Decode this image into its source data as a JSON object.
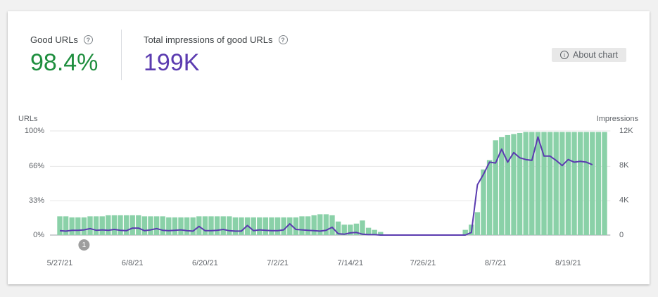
{
  "header": {
    "good_urls": {
      "label": "Good URLs",
      "value": "98.4%"
    },
    "impressions": {
      "label": "Total impressions of good URLs",
      "value": "199K"
    },
    "about_button": "About chart"
  },
  "chart_data": {
    "type": "combo",
    "y_label": "URLs",
    "y2_label": "Impressions",
    "categories": [
      "5/27/21",
      null,
      null,
      null,
      null,
      null,
      null,
      null,
      null,
      null,
      null,
      null,
      "6/8/21",
      null,
      null,
      null,
      null,
      null,
      null,
      null,
      null,
      null,
      null,
      null,
      "6/20/21",
      null,
      null,
      null,
      null,
      null,
      null,
      null,
      null,
      null,
      null,
      null,
      "7/2/21",
      null,
      null,
      null,
      null,
      null,
      null,
      null,
      null,
      null,
      null,
      null,
      "7/14/21",
      null,
      null,
      null,
      null,
      null,
      null,
      null,
      null,
      null,
      null,
      null,
      "7/26/21",
      null,
      null,
      null,
      null,
      null,
      null,
      null,
      null,
      null,
      null,
      null,
      "8/7/21",
      null,
      null,
      null,
      null,
      null,
      null,
      null,
      null,
      null,
      null,
      null,
      "8/19/21",
      null,
      null,
      null,
      null,
      null,
      null
    ],
    "series": [
      {
        "type": "bar",
        "color": "#8ad1a8",
        "values": [
          18,
          18,
          17,
          17,
          17,
          18,
          18,
          18,
          19,
          19,
          19,
          19,
          19,
          19,
          18,
          18,
          18,
          18,
          17,
          17,
          17,
          17,
          17,
          18,
          18,
          18,
          18,
          18,
          18,
          17,
          17,
          17,
          17,
          17,
          17,
          17,
          17,
          17,
          17,
          17,
          18,
          18,
          19,
          20,
          20,
          19,
          13,
          10,
          10,
          11,
          14,
          7,
          5,
          3,
          0,
          0,
          0,
          0,
          0,
          0,
          0,
          0,
          0,
          0,
          0,
          0,
          0,
          5,
          10,
          22,
          63,
          72,
          91,
          94,
          96,
          97,
          98,
          99,
          99,
          99,
          99,
          99,
          99,
          99,
          99,
          99,
          99,
          99,
          99,
          99,
          99
        ]
      },
      {
        "type": "line",
        "axis": "y2",
        "color": "#5b3bb0",
        "values": [
          500,
          450,
          550,
          550,
          600,
          750,
          550,
          600,
          550,
          650,
          550,
          500,
          800,
          800,
          500,
          600,
          750,
          550,
          500,
          550,
          600,
          500,
          450,
          1000,
          500,
          500,
          550,
          650,
          500,
          450,
          450,
          1100,
          500,
          600,
          550,
          500,
          500,
          600,
          1300,
          650,
          600,
          550,
          500,
          450,
          550,
          900,
          150,
          100,
          250,
          300,
          100,
          50,
          50,
          0,
          0,
          0,
          0,
          0,
          0,
          0,
          0,
          0,
          0,
          0,
          0,
          0,
          0,
          0,
          300,
          5800,
          7000,
          8400,
          8300,
          9900,
          8400,
          9500,
          8900,
          8700,
          8600,
          11300,
          9100,
          9100,
          8600,
          8000,
          8700,
          8400,
          8500,
          8400,
          8100,
          null,
          null
        ]
      }
    ],
    "ylim": [
      0,
      100
    ],
    "yticks": [
      {
        "value": 0,
        "label": "0%"
      },
      {
        "value": 33,
        "label": "33%"
      },
      {
        "value": 66,
        "label": "66%"
      },
      {
        "value": 100,
        "label": "100%"
      }
    ],
    "y2lim": [
      0,
      12000
    ],
    "y2ticks": [
      0,
      {
        "value": 4000,
        "label": "4K"
      },
      {
        "value": 8000,
        "label": "8K"
      },
      {
        "value": 12000,
        "label": "12K"
      }
    ],
    "grid": true,
    "annotations": [
      {
        "label": "1"
      }
    ]
  }
}
